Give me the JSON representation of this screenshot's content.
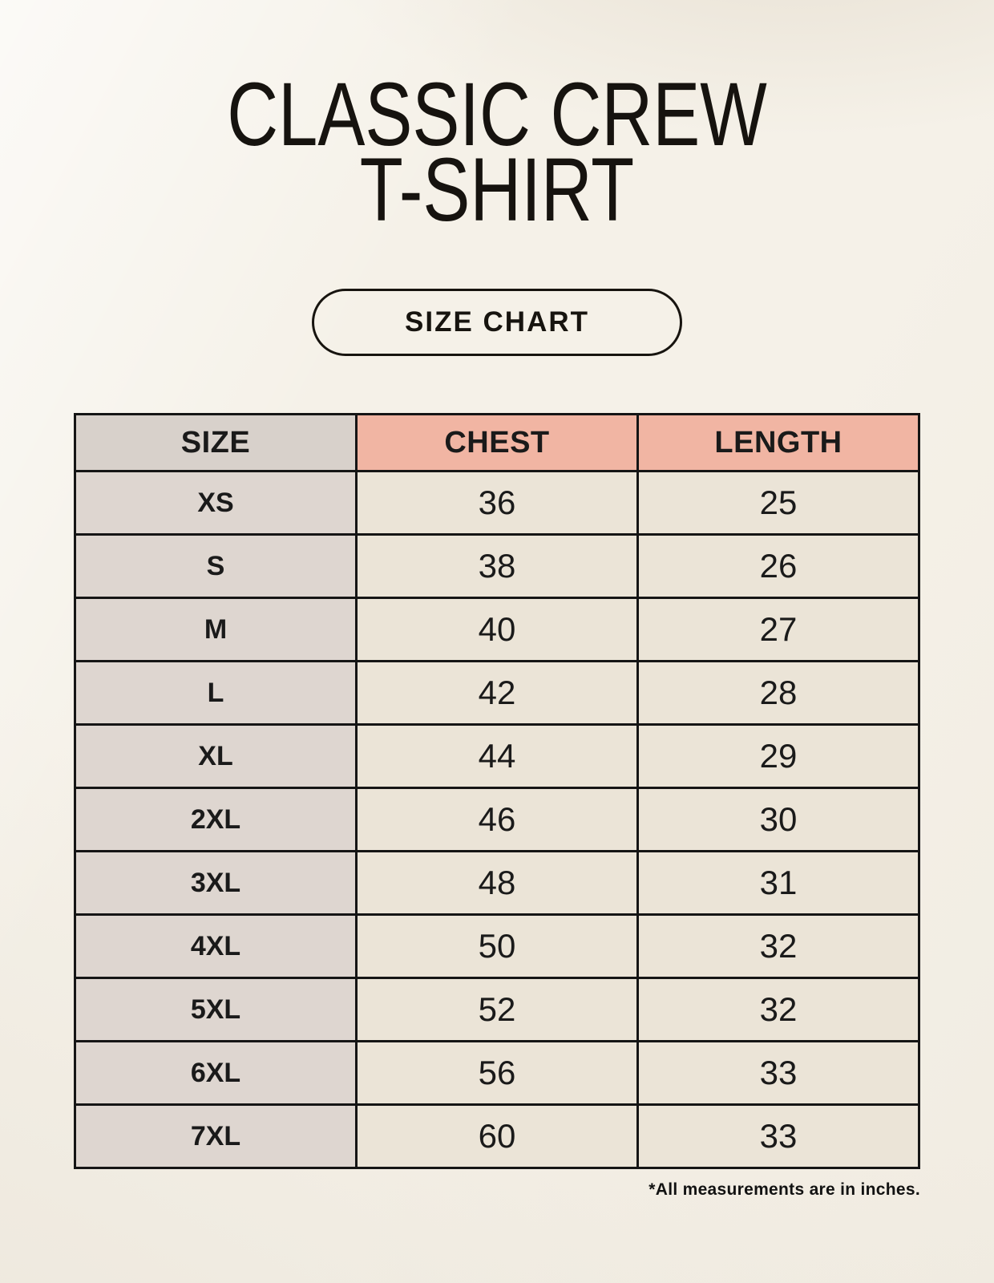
{
  "header": {
    "title_line1": "CLASSIC CREW",
    "title_line2": "T-SHIRT",
    "badge_label": "SIZE CHART"
  },
  "chart_data": {
    "type": "table",
    "title": "CLASSIC CREW T-SHIRT",
    "subtitle": "SIZE CHART",
    "columns": [
      "SIZE",
      "CHEST",
      "LENGTH"
    ],
    "rows": [
      [
        "XS",
        "36",
        "25"
      ],
      [
        "S",
        "38",
        "26"
      ],
      [
        "M",
        "40",
        "27"
      ],
      [
        "L",
        "42",
        "28"
      ],
      [
        "XL",
        "44",
        "29"
      ],
      [
        "2XL",
        "46",
        "30"
      ],
      [
        "3XL",
        "48",
        "31"
      ],
      [
        "4XL",
        "50",
        "32"
      ],
      [
        "5XL",
        "52",
        "32"
      ],
      [
        "6XL",
        "56",
        "33"
      ],
      [
        "7XL",
        "60",
        "33"
      ]
    ],
    "units": "inches"
  },
  "footer": {
    "note": "*All measurements are in inches."
  },
  "colors": {
    "background": "#f5f1e8",
    "header_accent": "#f1b5a3",
    "header_size_cell": "#d8d1cb",
    "size_column_cell": "#ded6d0",
    "value_cell": "#ebe4d7",
    "border": "#151515",
    "text": "#1a1a1a"
  }
}
